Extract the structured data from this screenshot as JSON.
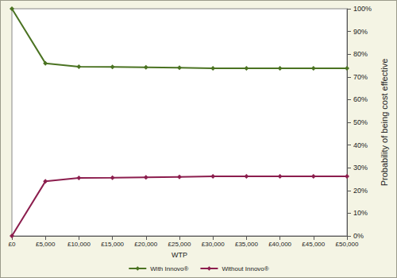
{
  "chart_data": {
    "type": "line",
    "x_label": "WTP",
    "y_label": "Probability of being cost effective",
    "categories": [
      "£0",
      "£5,000",
      "£10,000",
      "£15,000",
      "£20,000",
      "£25,000",
      "£30,000",
      "£35,000",
      "£40,000",
      "£45,000",
      "£50,000"
    ],
    "series": [
      {
        "name": "With Innovo®",
        "color": "#4b7322",
        "marker": "diamond",
        "values": [
          100,
          76,
          74.5,
          74.4,
          74.2,
          74,
          73.8,
          73.8,
          73.8,
          73.8,
          73.8
        ]
      },
      {
        "name": "Without Innovo®",
        "color": "#8c1e4e",
        "marker": "diamond",
        "values": [
          0,
          24,
          25.5,
          25.6,
          25.8,
          26,
          26.2,
          26.2,
          26.2,
          26.2,
          26.2
        ]
      }
    ],
    "ylim": [
      0,
      100
    ],
    "yticks": [
      {
        "value": 0,
        "label": "0%"
      },
      {
        "value": 10,
        "label": "10%"
      },
      {
        "value": 20,
        "label": "20%"
      },
      {
        "value": 30,
        "label": "30%"
      },
      {
        "value": 40,
        "label": "40%"
      },
      {
        "value": 50,
        "label": "50%"
      },
      {
        "value": 60,
        "label": "60%"
      },
      {
        "value": 70,
        "label": "70%"
      },
      {
        "value": 80,
        "label": "80%"
      },
      {
        "value": 90,
        "label": "90%"
      },
      {
        "value": 100,
        "label": "100%"
      }
    ],
    "grid": false,
    "legend": "bottom"
  }
}
